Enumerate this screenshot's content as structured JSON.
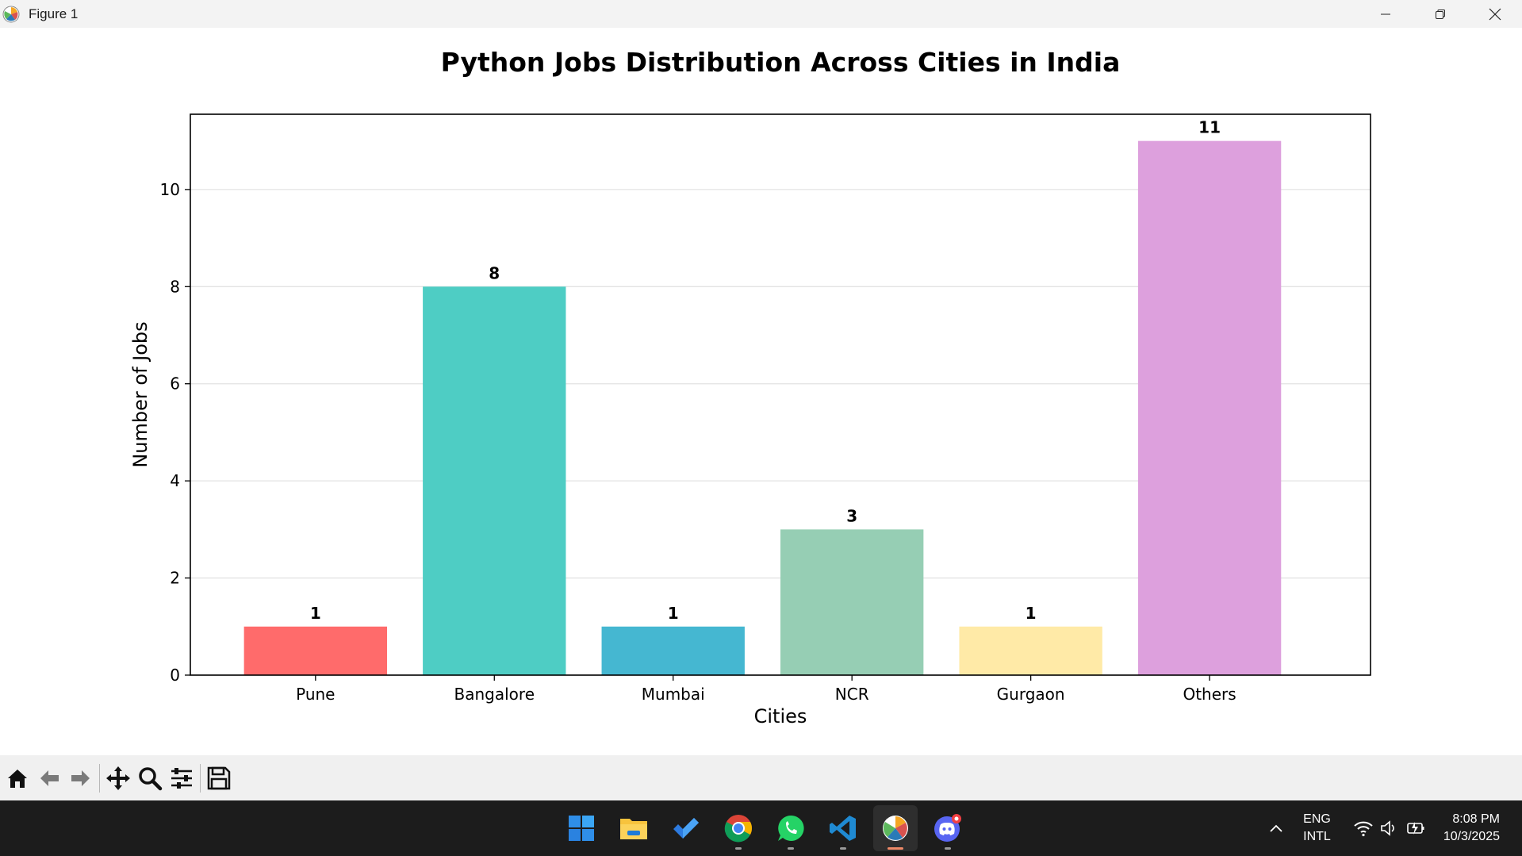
{
  "window": {
    "title": "Figure 1"
  },
  "chart_data": {
    "type": "bar",
    "title": "Python Jobs Distribution Across Cities in India",
    "xlabel": "Cities",
    "ylabel": "Number of Jobs",
    "categories": [
      "Pune",
      "Bangalore",
      "Mumbai",
      "NCR",
      "Gurgaon",
      "Others"
    ],
    "values": [
      1,
      8,
      1,
      3,
      1,
      11
    ],
    "data_labels": [
      "1",
      "8",
      "1",
      "3",
      "1",
      "11"
    ],
    "colors": [
      "#ff6b6b",
      "#4ecdc4",
      "#45b7d1",
      "#96ceb4",
      "#ffeaa7",
      "#dda0dd"
    ],
    "ylim": [
      0,
      11.55
    ],
    "yticks": [
      0,
      2,
      4,
      6,
      8,
      10
    ],
    "grid": "y",
    "legend": "none"
  },
  "toolbar": {
    "buttons": [
      "home-icon",
      "back-icon",
      "forward-icon",
      "pan-icon",
      "zoom-icon",
      "configure-subplots-icon",
      "save-icon"
    ]
  },
  "taskbar": {
    "apps": [
      "start-icon",
      "file-explorer-icon",
      "todo-icon",
      "chrome-icon",
      "whatsapp-icon",
      "vscode-icon",
      "matplotlib-icon",
      "discord-icon"
    ],
    "language": {
      "line1": "ENG",
      "line2": "INTL"
    },
    "time": "8:08 PM",
    "date": "10/3/2025"
  }
}
